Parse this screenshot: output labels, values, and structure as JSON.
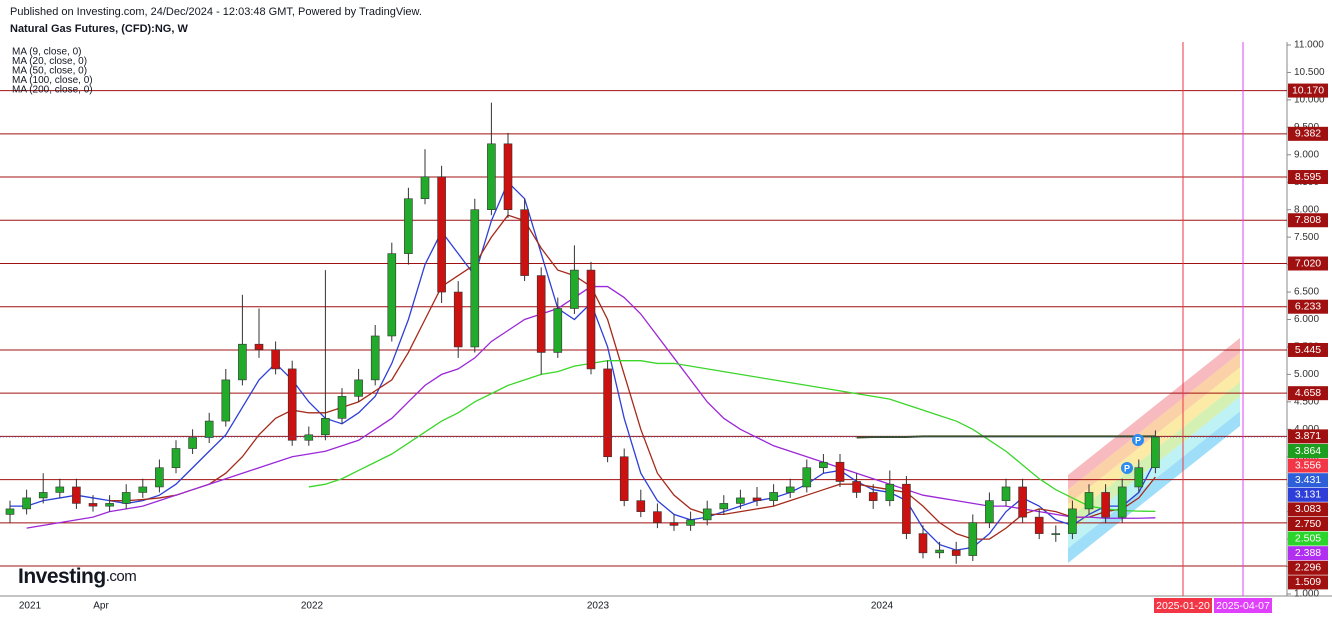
{
  "header": {
    "published": "Published on Investing.com, 24/Dec/2024 - 12:03:48 GMT, Powered by TradingView.",
    "symbol": "Natural Gas Futures, (CFD):NG, W"
  },
  "logo": {
    "brand": "Investing",
    "suffix": ".com"
  },
  "chart_data": {
    "type": "candlestick",
    "up_color": "#22ab2b",
    "down_color": "#cc1111",
    "ylim": [
      1,
      11
    ],
    "yticks": [
      {
        "value": 1,
        "label": "1.000"
      },
      {
        "value": 1.5,
        "label": "1.500"
      },
      {
        "value": 2,
        "label": "2.000"
      },
      {
        "value": 2.5,
        "label": "2.500"
      },
      {
        "value": 3,
        "label": "3.000"
      },
      {
        "value": 3.5,
        "label": "3.500"
      },
      {
        "value": 4,
        "label": "4.000"
      },
      {
        "value": 4.5,
        "label": "4.500"
      },
      {
        "value": 5,
        "label": "5.000"
      },
      {
        "value": 5.5,
        "label": "5.500"
      },
      {
        "value": 6,
        "label": "6.000"
      },
      {
        "value": 6.5,
        "label": "6.500"
      },
      {
        "value": 7,
        "label": "7.000"
      },
      {
        "value": 7.5,
        "label": "7.500"
      },
      {
        "value": 8,
        "label": "8.000"
      },
      {
        "value": 8.5,
        "label": "8.500"
      },
      {
        "value": 9,
        "label": "9.000"
      },
      {
        "value": 9.5,
        "label": "9.500"
      },
      {
        "value": 10,
        "label": "10.000"
      },
      {
        "value": 10.5,
        "label": "10.500"
      },
      {
        "value": 11,
        "label": "11.000"
      }
    ],
    "x_labels": [
      "2021",
      "Apr",
      "2022",
      "2023",
      "2024"
    ],
    "date_markers": [
      {
        "label": "2025-01-20",
        "color": "#f23645"
      },
      {
        "label": "2025-04-07",
        "color": "#e040fb"
      }
    ],
    "ohlc": {
      "open": [
        2.45,
        2.55,
        2.75,
        2.85,
        2.95,
        2.65,
        2.6,
        2.65,
        2.85,
        2.95,
        3.3,
        3.65,
        3.85,
        4.15,
        4.9,
        5.55,
        5.45,
        5.1,
        3.8,
        3.9,
        4.2,
        4.6,
        4.9,
        5.7,
        7.2,
        8.2,
        8.6,
        6.5,
        5.5,
        8.0,
        9.2,
        8.0,
        6.8,
        5.4,
        6.2,
        6.9,
        5.1,
        3.5,
        2.7,
        2.5,
        2.3,
        2.25,
        2.35,
        2.55,
        2.65,
        2.75,
        2.7,
        2.85,
        2.95,
        3.3,
        3.4,
        3.05,
        2.85,
        2.7,
        3.0,
        2.1,
        1.75,
        1.8,
        1.7,
        2.3,
        2.7,
        2.95,
        2.4,
        2.1,
        2.1,
        2.55,
        2.85,
        2.4,
        2.95,
        3.3
      ],
      "high": [
        2.7,
        2.9,
        3.2,
        3.1,
        3.1,
        2.8,
        2.8,
        3.0,
        3.1,
        3.45,
        3.8,
        4.0,
        4.3,
        5.1,
        6.45,
        6.2,
        5.6,
        5.25,
        4.05,
        6.9,
        4.75,
        5.1,
        5.9,
        7.4,
        8.4,
        9.1,
        8.8,
        6.7,
        8.2,
        9.95,
        9.4,
        8.2,
        6.95,
        6.4,
        7.35,
        7.05,
        5.25,
        3.65,
        2.9,
        2.65,
        2.45,
        2.5,
        2.7,
        2.8,
        2.9,
        2.95,
        3.0,
        3.1,
        3.45,
        3.55,
        3.55,
        3.2,
        3.0,
        3.25,
        3.15,
        2.25,
        1.95,
        1.95,
        2.45,
        2.85,
        3.1,
        3.1,
        2.55,
        2.25,
        2.7,
        3.0,
        3.0,
        3.1,
        3.45,
        3.98
      ],
      "low": [
        2.3,
        2.45,
        2.65,
        2.75,
        2.55,
        2.5,
        2.5,
        2.55,
        2.75,
        2.85,
        3.2,
        3.55,
        3.75,
        4.05,
        4.8,
        5.3,
        5.0,
        3.7,
        3.7,
        3.8,
        4.1,
        4.5,
        4.8,
        5.6,
        7.0,
        8.1,
        6.3,
        5.3,
        5.4,
        7.9,
        7.85,
        6.7,
        5.0,
        5.3,
        6.1,
        5.0,
        3.4,
        2.6,
        2.4,
        2.2,
        2.15,
        2.15,
        2.25,
        2.45,
        2.55,
        2.6,
        2.6,
        2.75,
        2.85,
        3.2,
        2.95,
        2.75,
        2.55,
        2.6,
        2.0,
        1.65,
        1.65,
        1.55,
        1.6,
        2.2,
        2.6,
        2.3,
        2.0,
        1.95,
        2.0,
        2.45,
        2.3,
        2.3,
        2.85,
        3.2
      ],
      "close": [
        2.55,
        2.75,
        2.85,
        2.95,
        2.65,
        2.6,
        2.65,
        2.85,
        2.95,
        3.3,
        3.65,
        3.85,
        4.15,
        4.9,
        5.55,
        5.45,
        5.1,
        3.8,
        3.9,
        4.2,
        4.6,
        4.9,
        5.7,
        7.2,
        8.2,
        8.6,
        6.5,
        5.5,
        8.0,
        9.2,
        8.0,
        6.8,
        5.4,
        6.2,
        6.9,
        5.1,
        3.5,
        2.7,
        2.5,
        2.3,
        2.25,
        2.35,
        2.55,
        2.65,
        2.75,
        2.7,
        2.85,
        2.95,
        3.3,
        3.4,
        3.05,
        2.85,
        2.7,
        3.0,
        2.1,
        1.75,
        1.8,
        1.7,
        2.3,
        2.7,
        2.95,
        2.4,
        2.1,
        2.1,
        2.55,
        2.85,
        2.4,
        2.95,
        3.3,
        3.86
      ]
    },
    "series": [
      {
        "name": "MA (9, close, 0)",
        "color": "#2d3fd8",
        "values": [
          2.6,
          2.6,
          2.7,
          2.75,
          2.8,
          2.75,
          2.7,
          2.65,
          2.7,
          2.8,
          3.0,
          3.3,
          3.6,
          3.9,
          4.4,
          4.9,
          5.2,
          4.9,
          4.5,
          4.2,
          4.1,
          4.3,
          4.6,
          5.2,
          6.0,
          7.0,
          7.6,
          7.2,
          6.8,
          7.8,
          8.5,
          8.2,
          7.2,
          6.2,
          6.0,
          6.3,
          5.5,
          4.2,
          3.2,
          2.7,
          2.45,
          2.35,
          2.4,
          2.5,
          2.6,
          2.7,
          2.75,
          2.85,
          3.0,
          3.2,
          3.25,
          3.05,
          2.9,
          2.85,
          2.7,
          2.2,
          1.9,
          1.8,
          1.85,
          2.1,
          2.5,
          2.75,
          2.6,
          2.35,
          2.25,
          2.45,
          2.6,
          2.6,
          2.85,
          3.43
        ]
      },
      {
        "name": "MA (20, close, 0)",
        "color": "#a52a1a",
        "values": [
          null,
          null,
          null,
          null,
          null,
          null,
          2.7,
          2.7,
          2.72,
          2.75,
          2.8,
          2.9,
          3.0,
          3.2,
          3.5,
          3.9,
          4.2,
          4.35,
          4.3,
          4.3,
          4.4,
          4.5,
          4.7,
          4.9,
          5.4,
          6.0,
          6.6,
          6.8,
          7.0,
          7.5,
          7.9,
          7.8,
          7.3,
          6.9,
          6.8,
          6.6,
          6.0,
          5.0,
          4.0,
          3.2,
          2.8,
          2.55,
          2.45,
          2.45,
          2.5,
          2.55,
          2.6,
          2.7,
          2.8,
          2.9,
          3.0,
          3.0,
          2.95,
          2.9,
          2.85,
          2.6,
          2.3,
          2.1,
          2.0,
          2.0,
          2.2,
          2.45,
          2.55,
          2.5,
          2.4,
          2.4,
          2.5,
          2.55,
          2.75,
          3.131
        ]
      },
      {
        "name": "MA (50, close, 0)",
        "color": "#9c27d8",
        "values": [
          null,
          2.2,
          2.25,
          2.3,
          2.35,
          2.4,
          2.5,
          2.55,
          2.6,
          2.7,
          2.8,
          2.9,
          3.0,
          3.1,
          3.2,
          3.3,
          3.4,
          3.5,
          3.55,
          3.6,
          3.7,
          3.8,
          4.0,
          4.2,
          4.5,
          4.8,
          5.0,
          5.1,
          5.3,
          5.6,
          5.8,
          6.0,
          6.1,
          6.2,
          6.4,
          6.6,
          6.6,
          6.4,
          6.1,
          5.7,
          5.3,
          4.9,
          4.5,
          4.2,
          4.0,
          3.85,
          3.7,
          3.6,
          3.5,
          3.4,
          3.3,
          3.2,
          3.1,
          3.0,
          2.9,
          2.8,
          2.75,
          2.7,
          2.65,
          2.6,
          2.6,
          2.55,
          2.5,
          2.45,
          2.4,
          2.4,
          2.38,
          2.38,
          2.38,
          2.388
        ]
      },
      {
        "name": "MA (100, close, 0)",
        "color": "#3bd62a",
        "values": [
          null,
          null,
          null,
          null,
          null,
          null,
          null,
          null,
          null,
          null,
          null,
          null,
          null,
          null,
          null,
          null,
          null,
          null,
          2.95,
          3.0,
          3.1,
          3.25,
          3.4,
          3.55,
          3.75,
          3.95,
          4.15,
          4.3,
          4.5,
          4.65,
          4.8,
          4.9,
          5.0,
          5.05,
          5.15,
          5.2,
          5.25,
          5.25,
          5.25,
          5.2,
          5.2,
          5.15,
          5.1,
          5.05,
          5.0,
          4.95,
          4.9,
          4.85,
          4.8,
          4.75,
          4.7,
          4.65,
          4.6,
          4.55,
          4.45,
          4.35,
          4.25,
          4.15,
          4.0,
          3.8,
          3.6,
          3.35,
          3.1,
          2.9,
          2.75,
          2.6,
          2.55,
          2.52,
          2.51,
          2.505
        ]
      },
      {
        "name": "MA (200, close, 0)",
        "color": "#3d4a1e",
        "values": [
          null,
          null,
          null,
          null,
          null,
          null,
          null,
          null,
          null,
          null,
          null,
          null,
          null,
          null,
          null,
          null,
          null,
          null,
          null,
          null,
          null,
          null,
          null,
          null,
          null,
          null,
          null,
          null,
          null,
          null,
          null,
          null,
          null,
          null,
          null,
          null,
          null,
          null,
          null,
          null,
          null,
          null,
          null,
          null,
          null,
          null,
          null,
          null,
          null,
          null,
          null,
          3.85,
          3.86,
          3.86,
          3.86,
          3.87,
          3.87,
          3.87,
          3.87,
          3.87,
          3.87,
          3.87,
          3.87,
          3.87,
          3.87,
          3.87,
          3.87,
          3.87,
          3.87,
          3.87
        ]
      }
    ],
    "levels": [
      {
        "value": 10.17,
        "label": "10.170"
      },
      {
        "value": 9.382,
        "label": "9.382"
      },
      {
        "value": 8.595,
        "label": "8.595"
      },
      {
        "value": 7.808,
        "label": "7.808"
      },
      {
        "value": 7.02,
        "label": "7.020"
      },
      {
        "value": 6.233,
        "label": "6.233"
      },
      {
        "value": 5.445,
        "label": "5.445"
      },
      {
        "value": 4.658,
        "label": "4.658"
      },
      {
        "value": 3.871,
        "label": "3.871"
      },
      {
        "value": 3.083,
        "label": "3.083"
      },
      {
        "value": 2.296,
        "label": "2.296"
      },
      {
        "value": 1.509,
        "label": "1.509"
      }
    ],
    "level_color": "#a01010",
    "price_labels": [
      {
        "value": 3.864,
        "label": "3.864",
        "color": "#1e9e1e"
      },
      {
        "value": 3.556,
        "label": "3.556",
        "color": "#f23645"
      },
      {
        "value": 3.431,
        "label": "3.431",
        "color": "#2d5fd8"
      },
      {
        "value": 3.131,
        "label": "3.131",
        "color": "#2d3fd8"
      },
      {
        "value": 2.75,
        "label": "2.750",
        "color": "#a01010"
      },
      {
        "value": 2.505,
        "label": "2.505",
        "color": "#2ad42a"
      },
      {
        "value": 2.388,
        "label": "2.388",
        "color": "#b12ff0"
      }
    ]
  }
}
